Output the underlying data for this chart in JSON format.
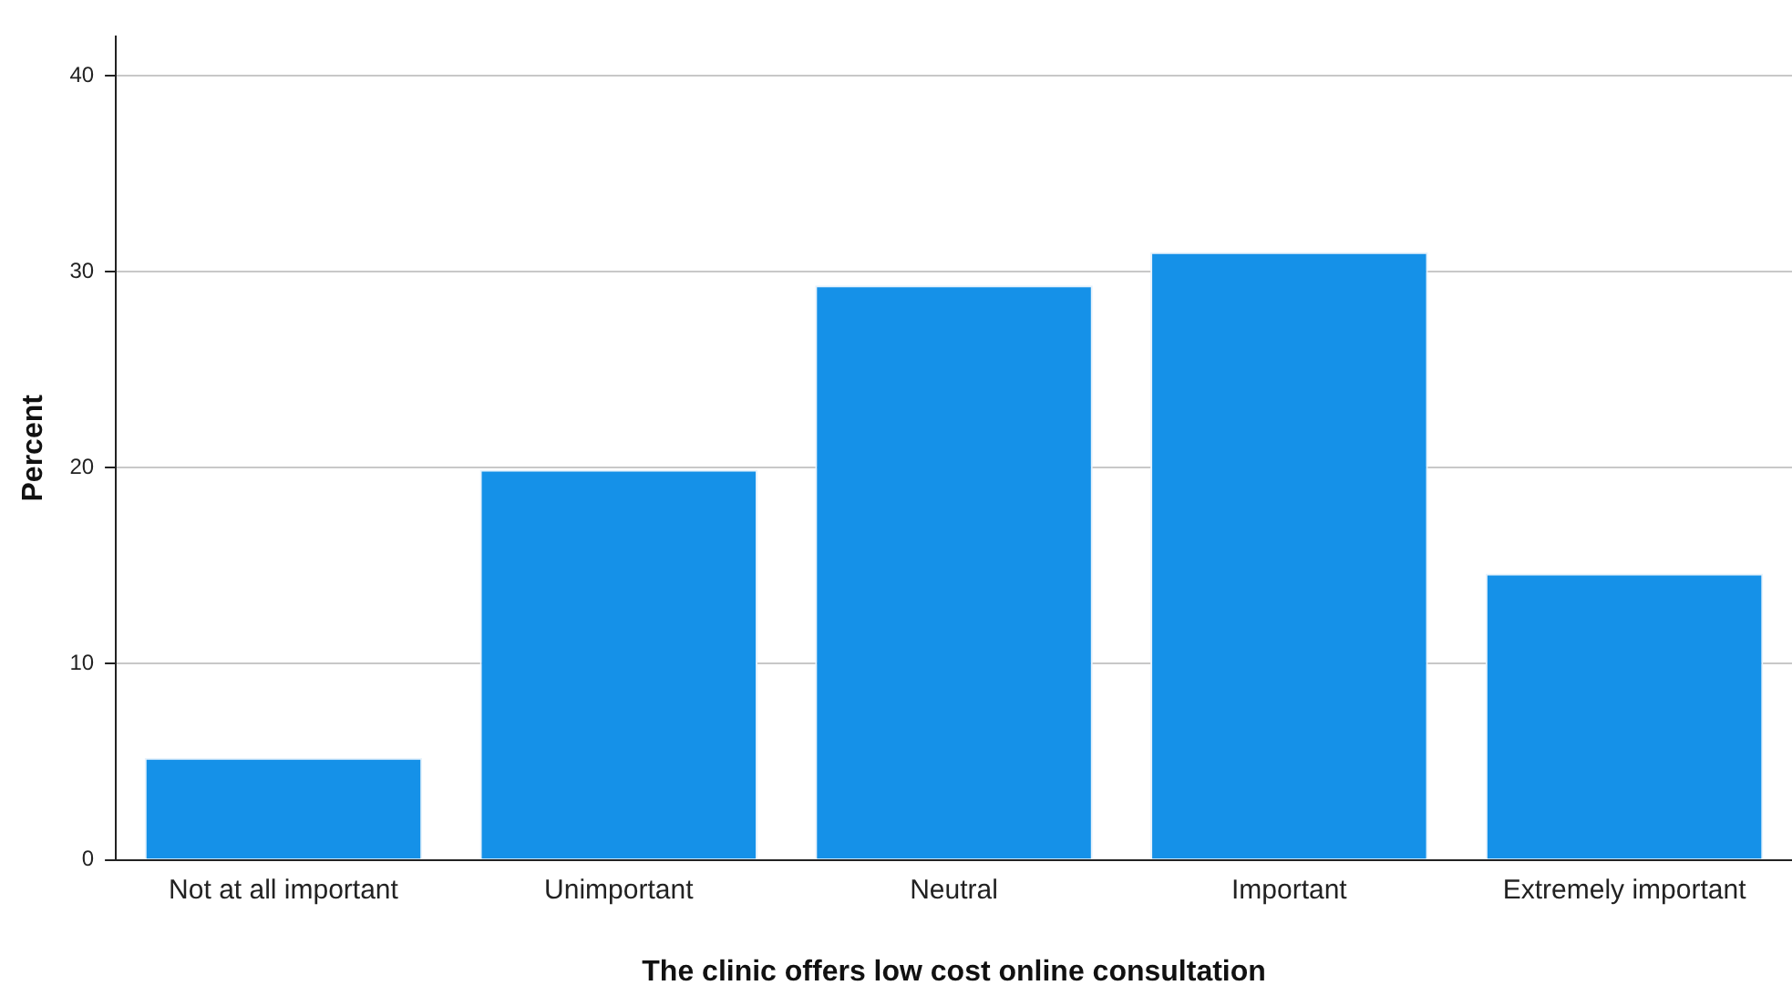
{
  "chart_data": {
    "type": "bar",
    "xlabel": "The clinic offers low cost online consultation",
    "ylabel": "Percent",
    "categories": [
      "Not at all important",
      "Unimportant",
      "Neutral",
      "Important",
      "Extremely important"
    ],
    "values": [
      5.2,
      19.9,
      29.3,
      31.0,
      14.6
    ],
    "color": "#1591e8",
    "ylim": [
      0,
      42
    ],
    "yticks": [
      0,
      10,
      20,
      30,
      40
    ],
    "grid": "y",
    "legend": false
  }
}
